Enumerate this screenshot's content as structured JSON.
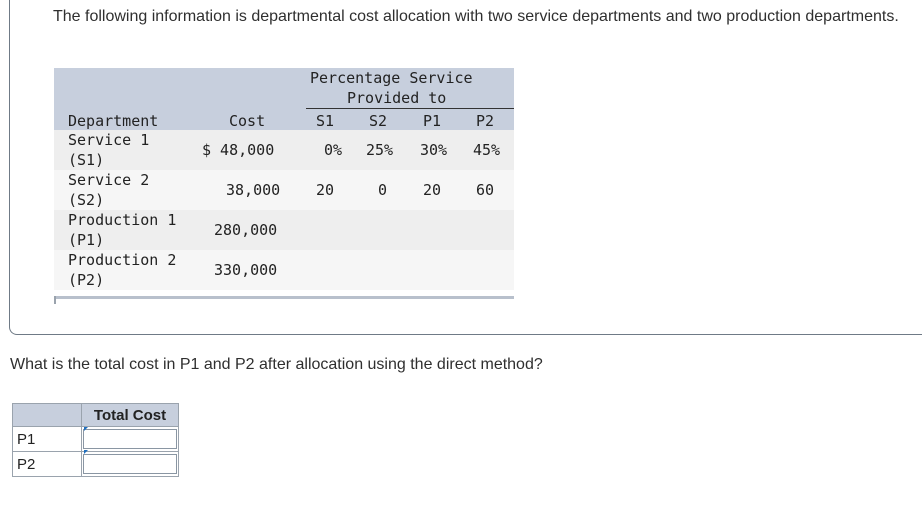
{
  "intro": "The following information is departmental cost allocation with two service departments and two production departments.",
  "table": {
    "pct_header_line1": "Percentage Service",
    "pct_header_line2": "Provided to",
    "columns": {
      "department": "Department",
      "cost": "Cost",
      "s1": "S1",
      "s2": "S2",
      "p1": "P1",
      "p2": "P2"
    },
    "rows": [
      {
        "name_line1": "Service 1",
        "name_line2": "(S1)",
        "cost": "$ 48,000",
        "s1": "0%",
        "s2": "25%",
        "p1": "30%",
        "p2": "45%"
      },
      {
        "name_line1": "Service 2",
        "name_line2": "(S2)",
        "cost": "38,000",
        "s1": "20",
        "s2": "0",
        "p1": "20",
        "p2": "60"
      },
      {
        "name_line1": "Production 1",
        "name_line2": "(P1)",
        "cost": "280,000",
        "s1": "",
        "s2": "",
        "p1": "",
        "p2": ""
      },
      {
        "name_line1": "Production 2",
        "name_line2": "(P2)",
        "cost": "330,000",
        "s1": "",
        "s2": "",
        "p1": "",
        "p2": ""
      }
    ]
  },
  "question": "What is the total cost in P1 and P2 after allocation using the direct method?",
  "answer": {
    "header": "Total Cost",
    "rows": [
      {
        "label": "P1",
        "value": ""
      },
      {
        "label": "P2",
        "value": ""
      }
    ]
  }
}
